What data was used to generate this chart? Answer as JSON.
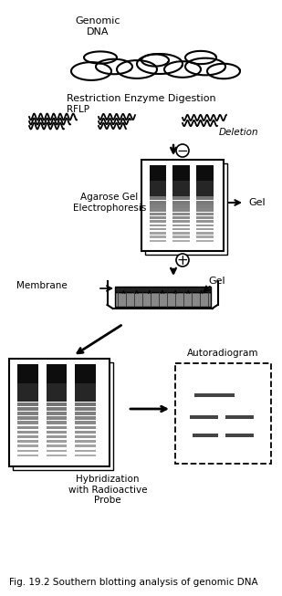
{
  "title": "Fig. 19.2 Southern blotting analysis of genomic DNA",
  "title_fontsize": 7.5,
  "bg_color": "#ffffff",
  "text_color": "#000000",
  "labels": {
    "genomic_dna": "Genomic\nDNA",
    "restriction": "Restriction Enzyme Digestion",
    "rflp": "RFLP",
    "deletion": "Deletion",
    "agarose": "Agarose Gel\nElectrophoresis",
    "gel_label": "Gel",
    "gel_label2": "Gel",
    "membrane": "Membrane",
    "hybridization": "Hybridization\nwith Radioactive\nProbe",
    "autoradiogram": "Autoradiogram"
  },
  "figure_width": 3.09,
  "figure_height": 6.53,
  "dpi": 100
}
